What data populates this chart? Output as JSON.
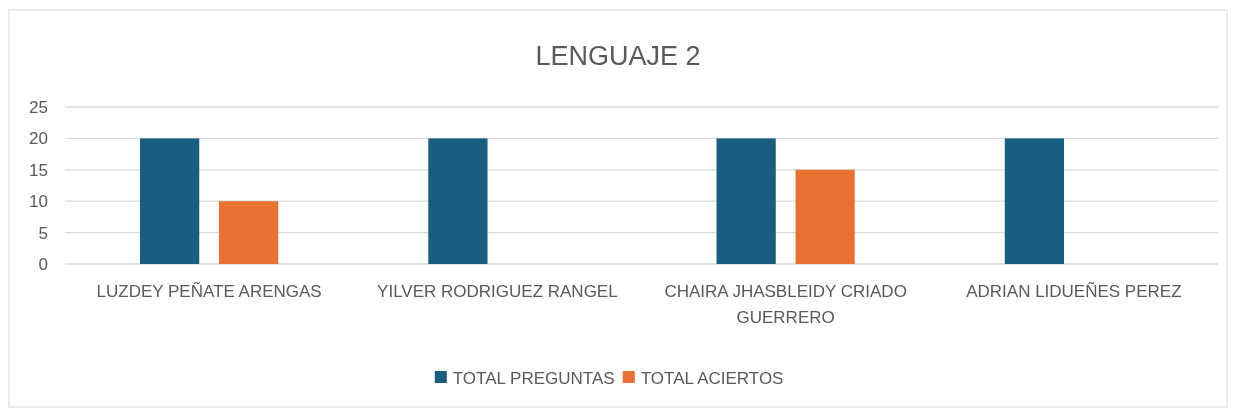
{
  "chart_data": {
    "type": "bar",
    "title": "LENGUAJE 2",
    "categories": [
      "LUZDEY PEÑATE ARENGAS",
      "YILVER RODRIGUEZ RANGEL",
      "CHAIRA JHASBLEIDY CRIADO GUERRERO",
      "ADRIAN LIDUEÑES PEREZ"
    ],
    "series": [
      {
        "name": "TOTAL PREGUNTAS",
        "color": "#175e80",
        "values": [
          20,
          20,
          20,
          20
        ]
      },
      {
        "name": "TOTAL ACIERTOS",
        "color": "#e97132",
        "values": [
          10,
          0,
          15,
          0
        ]
      }
    ],
    "ylim": [
      0,
      25
    ],
    "yticks": [
      0,
      5,
      10,
      15,
      20,
      25
    ],
    "grid": "y",
    "legend": "bottom"
  }
}
